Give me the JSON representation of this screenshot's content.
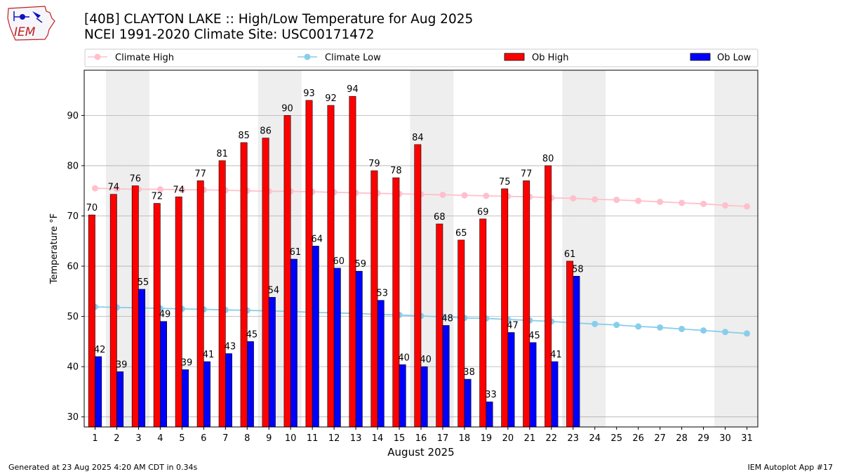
{
  "header": {
    "title_line1": "[40B] CLAYTON LAKE :: High/Low Temperature for Aug 2025",
    "title_line2": "NCEI 1991-2020 Climate Site: USC00171472",
    "logo_text": "IEM"
  },
  "footer": {
    "generated": "Generated at 23 Aug 2025 4:20 AM CDT in 0.34s",
    "app": "IEM Autoplot App #17"
  },
  "colors": {
    "ob_high": "#ff0000",
    "ob_low": "#0000ff",
    "climate_high": "#ffc0cb",
    "climate_low": "#87ceeb",
    "weekend_shade": "#eeeeee",
    "grid": "#b0b0b0"
  },
  "chart_data": {
    "type": "bar",
    "xlabel": "August 2025",
    "ylabel": "Temperature °F",
    "xlim": [
      0.5,
      31.5
    ],
    "ylim": [
      28,
      99
    ],
    "yticks": [
      30,
      40,
      50,
      60,
      70,
      80,
      90
    ],
    "grid": "horizontal",
    "legend_position": "top",
    "days": [
      1,
      2,
      3,
      4,
      5,
      6,
      7,
      8,
      9,
      10,
      11,
      12,
      13,
      14,
      15,
      16,
      17,
      18,
      19,
      20,
      21,
      22,
      23,
      24,
      25,
      26,
      27,
      28,
      29,
      30,
      31
    ],
    "shaded_days": [
      2,
      3,
      9,
      10,
      16,
      17,
      23,
      24,
      30,
      31
    ],
    "series": [
      {
        "name": "Climate High",
        "kind": "line",
        "values": [
          75.5,
          75.4,
          75.3,
          75.3,
          75.2,
          75.2,
          75.1,
          75.0,
          74.9,
          74.9,
          74.8,
          74.7,
          74.6,
          74.5,
          74.4,
          74.3,
          74.2,
          74.1,
          74.0,
          73.9,
          73.8,
          73.6,
          73.5,
          73.3,
          73.2,
          73.0,
          72.8,
          72.6,
          72.4,
          72.1,
          71.9
        ]
      },
      {
        "name": "Climate Low",
        "kind": "line",
        "values": [
          51.9,
          51.8,
          51.7,
          51.6,
          51.5,
          51.4,
          51.3,
          51.2,
          51.1,
          51.0,
          50.8,
          50.7,
          50.6,
          50.4,
          50.3,
          50.1,
          49.9,
          49.7,
          49.6,
          49.4,
          49.2,
          49.0,
          48.7,
          48.5,
          48.3,
          48.0,
          47.8,
          47.5,
          47.2,
          46.9,
          46.6
        ]
      },
      {
        "name": "Ob High",
        "kind": "bar",
        "values": [
          70.2,
          74.3,
          76.0,
          72.5,
          73.8,
          77.0,
          81.0,
          84.6,
          85.5,
          90.0,
          93.0,
          92.0,
          93.8,
          79.0,
          77.6,
          84.2,
          68.4,
          65.2,
          69.4,
          75.4,
          77.0,
          80.0,
          61.0
        ]
      },
      {
        "name": "Ob Low",
        "kind": "bar",
        "values": [
          42.0,
          39.0,
          55.4,
          49.0,
          39.4,
          41.0,
          42.6,
          45.0,
          53.8,
          61.4,
          64.0,
          59.6,
          59.0,
          53.2,
          40.4,
          40.0,
          48.2,
          37.5,
          33.0,
          46.8,
          44.8,
          41.0,
          58.0
        ]
      }
    ],
    "high_labels": [
      "70",
      "74",
      "76",
      "72",
      "74",
      "77",
      "81",
      "85",
      "86",
      "90",
      "93",
      "92",
      "94",
      "79",
      "78",
      "84",
      "68",
      "65",
      "69",
      "75",
      "77",
      "80",
      "61"
    ],
    "low_labels": [
      "42",
      "39",
      "55",
      "49",
      "39",
      "41",
      "43",
      "45",
      "54",
      "61",
      "64",
      "60",
      "59",
      "53",
      "40",
      "40",
      "48",
      "38",
      "33",
      "47",
      "45",
      "41",
      "58"
    ]
  }
}
